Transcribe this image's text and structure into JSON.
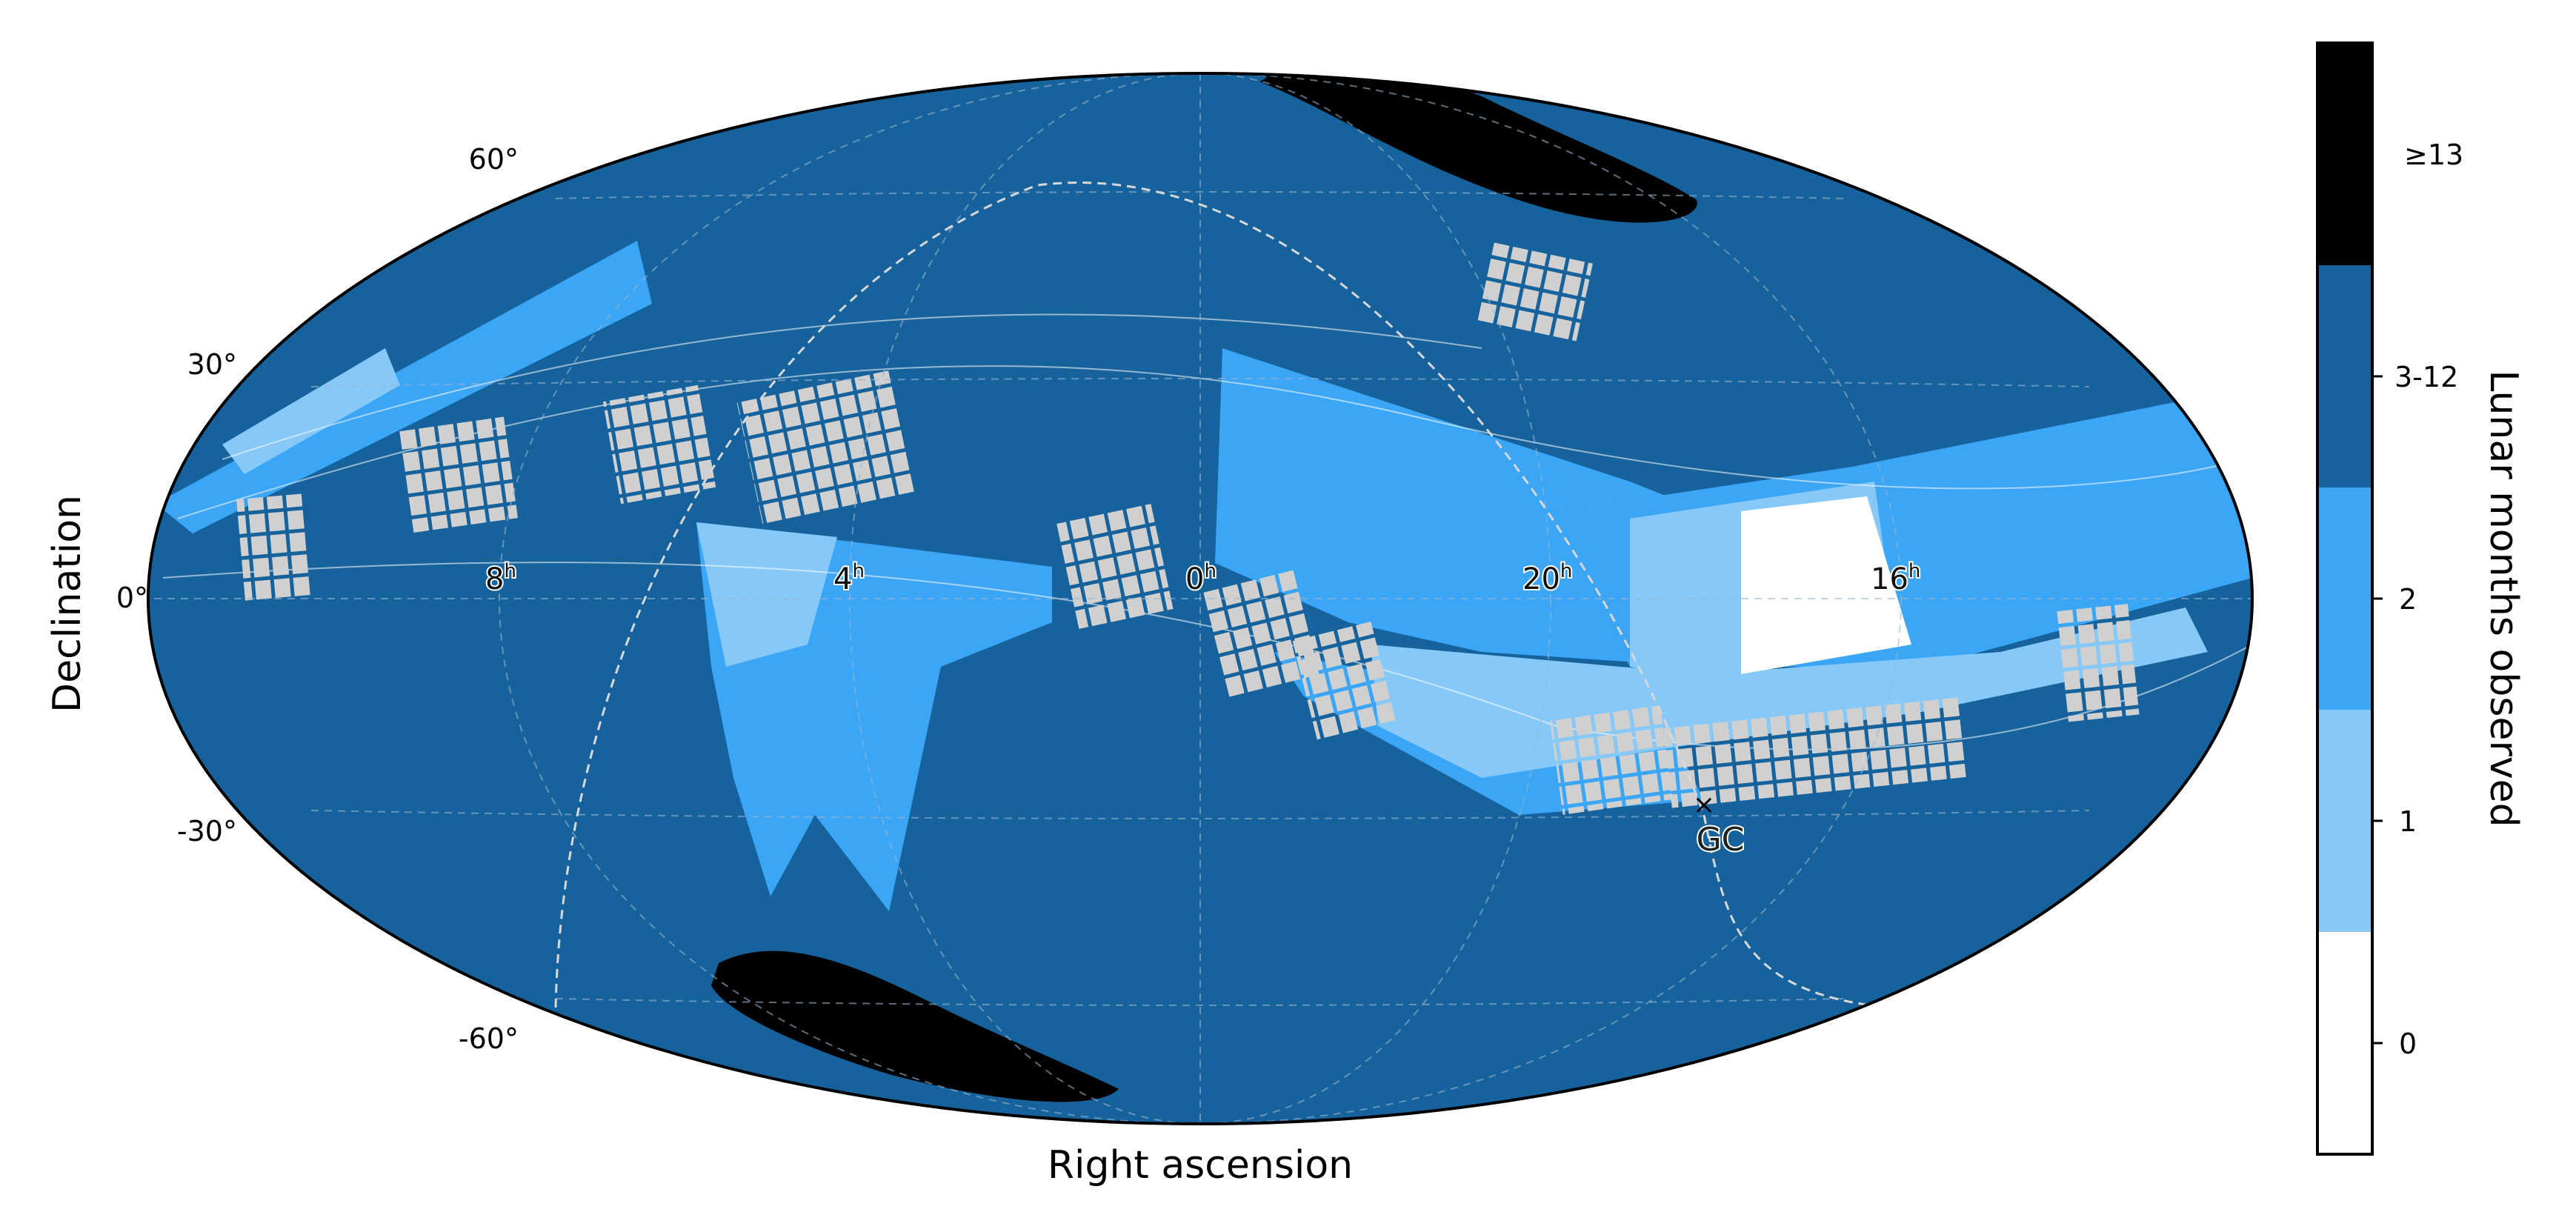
{
  "map": {
    "projection": "Aitoff-style all-sky (equatorial)",
    "xlabel": "Right ascension",
    "ylabel": "Declination",
    "dec_tick_labels": [
      "60°",
      "30°",
      "0°",
      "-30°",
      "-60°"
    ],
    "ra_tick_labels": [
      {
        "hour": "8",
        "sup": "h"
      },
      {
        "hour": "4",
        "sup": "h"
      },
      {
        "hour": "0",
        "sup": "h"
      },
      {
        "hour": "20",
        "sup": "h"
      },
      {
        "hour": "16",
        "sup": "h"
      }
    ],
    "gc_marker": {
      "label": "GC",
      "symbol": "×"
    },
    "colors": {
      "ocean_base": "#16629c",
      "two_months": "#3aa6f5",
      "one_month": "#86c8f7",
      "zero": "#ffffff",
      "thirteen_plus": "#000000",
      "fields": "#d0d0d0"
    }
  },
  "colorbar": {
    "label": "Lunar months observed",
    "bins": [
      {
        "label": "≥13",
        "color": "#000000"
      },
      {
        "label": "3-12",
        "color": "#16629c"
      },
      {
        "label": "2",
        "color": "#3aa6f5"
      },
      {
        "label": "1",
        "color": "#86c8f7"
      },
      {
        "label": "0",
        "color": "#ffffff"
      }
    ]
  }
}
